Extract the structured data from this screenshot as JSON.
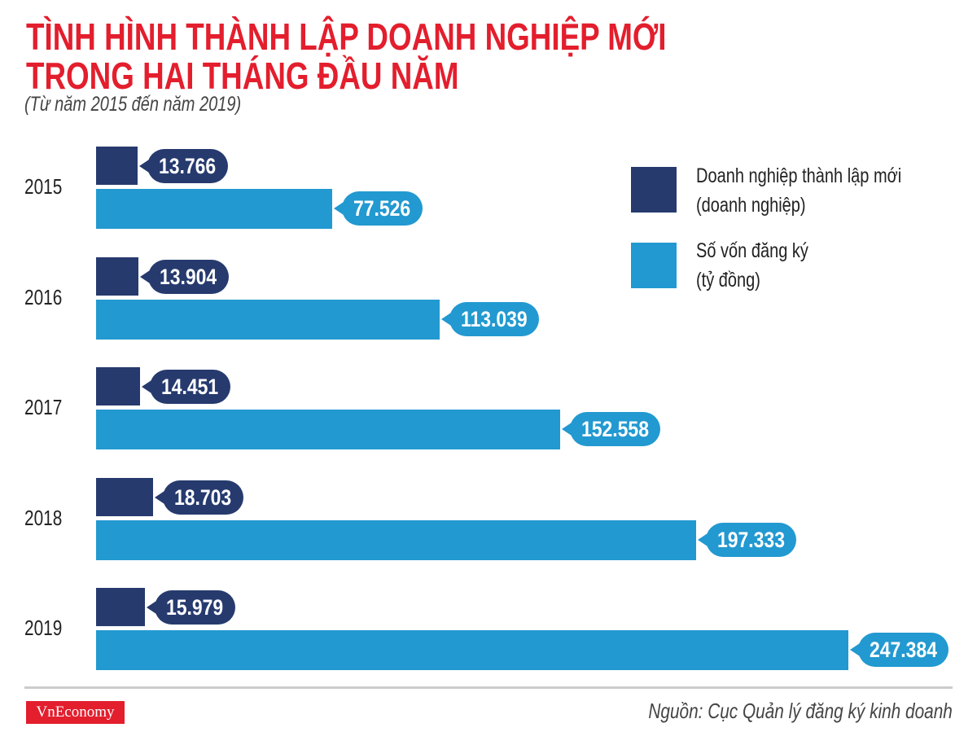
{
  "chart_data": {
    "type": "bar",
    "orientation": "horizontal",
    "title": "TÌNH HÌNH THÀNH LẬP DOANH NGHIỆP MỚI TRONG HAI THÁNG ĐẦU NĂM",
    "title_lines": [
      "TÌNH HÌNH THÀNH LẬP DOANH NGHIỆP MỚI",
      "TRONG HAI THÁNG ĐẦU NĂM"
    ],
    "subtitle": "(Từ năm 2015 đến năm 2019)",
    "categories": [
      "2015",
      "2016",
      "2017",
      "2018",
      "2019"
    ],
    "series": [
      {
        "name": "Doanh nghiệp thành lập mới (doanh nghiệp)",
        "name_lines": [
          "Doanh nghiệp thành lập mới",
          "(doanh nghiệp)"
        ],
        "color": "#263a6e",
        "values": [
          13766,
          13904,
          14451,
          18703,
          15979
        ],
        "labels": [
          "13.766",
          "13.904",
          "14.451",
          "18.703",
          "15.979"
        ]
      },
      {
        "name": "Số vốn đăng ký (tỷ đồng)",
        "name_lines": [
          "Số vốn đăng ký",
          "(tỷ đồng)"
        ],
        "color": "#2299d0",
        "values": [
          77526,
          113039,
          152558,
          197333,
          247384
        ],
        "labels": [
          "77.526",
          "113.039",
          "152.558",
          "197.333",
          "247.384"
        ]
      }
    ],
    "xlim": [
      0,
      247384
    ],
    "grid": false,
    "legend": "right"
  },
  "footer": {
    "logo": "VnEconomy",
    "source": "Nguồn: Cục Quản lý đăng ký kinh doanh"
  },
  "colors": {
    "title": "#e31e2d",
    "logo_bg": "#e31e2d"
  }
}
